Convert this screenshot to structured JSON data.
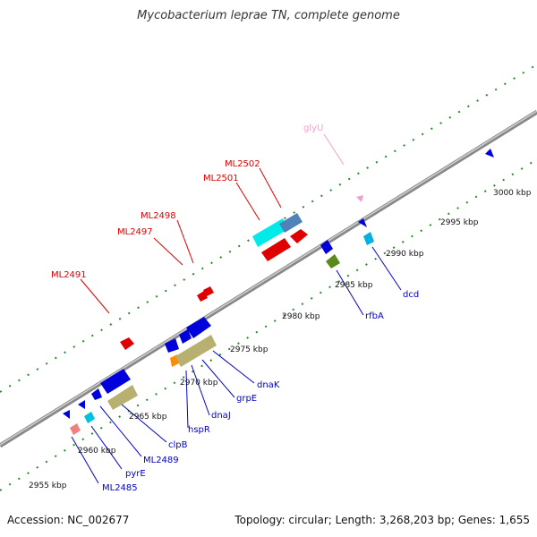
{
  "title": "Mycobacterium leprae TN, complete genome",
  "footer": {
    "accession": "Accession: NC_002677",
    "summary": "Topology: circular; Length: 3,268,203 bp; Genes: 1,655"
  },
  "colors": {
    "backbone": "#8c8c8c",
    "dots": "#2a8a2a",
    "label_blue": "#0000cc",
    "label_red": "#dd0000",
    "label_pink": "#f0a0d0"
  },
  "scale_labels": [
    {
      "text": "2955 kbp"
    },
    {
      "text": "2960 kbp"
    },
    {
      "text": "2965 kbp"
    },
    {
      "text": "2970 kbp"
    },
    {
      "text": "2975 kbp"
    },
    {
      "text": "2980 kbp"
    },
    {
      "text": "2985 kbp"
    },
    {
      "text": "2990 kbp"
    },
    {
      "text": "2995 kbp"
    },
    {
      "text": "3000 kbp"
    }
  ],
  "gene_labels_top": [
    {
      "text": "ML2491"
    },
    {
      "text": "ML2497"
    },
    {
      "text": "ML2498"
    },
    {
      "text": "ML2501"
    },
    {
      "text": "ML2502"
    },
    {
      "text": "glyU"
    }
  ],
  "gene_labels_bottom": [
    {
      "text": "ML2485"
    },
    {
      "text": "pyrE"
    },
    {
      "text": "ML2489"
    },
    {
      "text": "clpB"
    },
    {
      "text": "hspR"
    },
    {
      "text": "dnaJ"
    },
    {
      "text": "grpE"
    },
    {
      "text": "dnaK"
    },
    {
      "text": "rfbA"
    },
    {
      "text": "dcd"
    }
  ]
}
